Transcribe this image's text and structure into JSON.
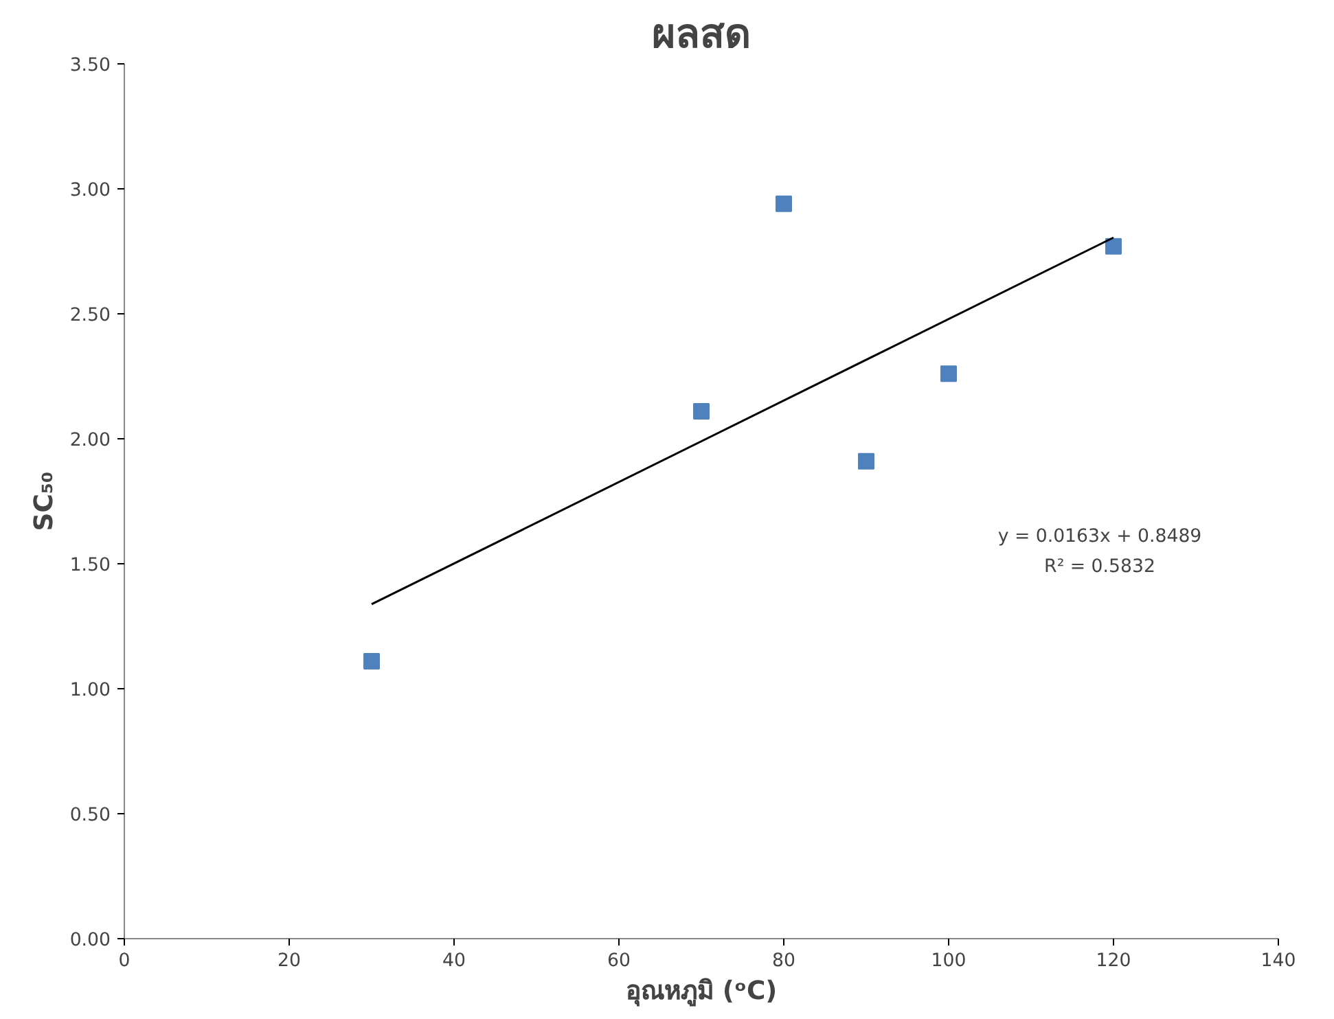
{
  "chart_data": {
    "type": "scatter",
    "title": "ผลสด",
    "xlabel": "อุณหภูมิ (ᵒC)",
    "ylabel": "SC₅₀",
    "grid": false,
    "series": [
      {
        "marker": "square",
        "color": "#4f81bd",
        "x": [
          30,
          70,
          80,
          90,
          100,
          120
        ],
        "values": [
          1.11,
          2.11,
          2.94,
          1.91,
          2.26,
          2.77
        ]
      },
      {
        "type": "line",
        "color": "#000000",
        "x": [
          30,
          120
        ],
        "values": [
          1.338,
          2.805
        ]
      }
    ],
    "xlim": [
      0,
      140
    ],
    "xticks": [
      0,
      20,
      40,
      60,
      80,
      100,
      120,
      140
    ],
    "ylim": [
      0,
      3.5
    ],
    "yticks": [
      {
        "value": 0,
        "label": "0.00"
      },
      {
        "value": 0.5,
        "label": "0.50"
      },
      {
        "value": 1,
        "label": "1.00"
      },
      {
        "value": 1.5,
        "label": "1.50"
      },
      {
        "value": 2,
        "label": "2.00"
      },
      {
        "value": 2.5,
        "label": "2.50"
      },
      {
        "value": 3,
        "label": "3.00"
      },
      {
        "value": 3.5,
        "label": "3.50"
      }
    ],
    "annotations": [
      "y = 0.0163x + 0.8489",
      "R² = 0.5832"
    ]
  }
}
